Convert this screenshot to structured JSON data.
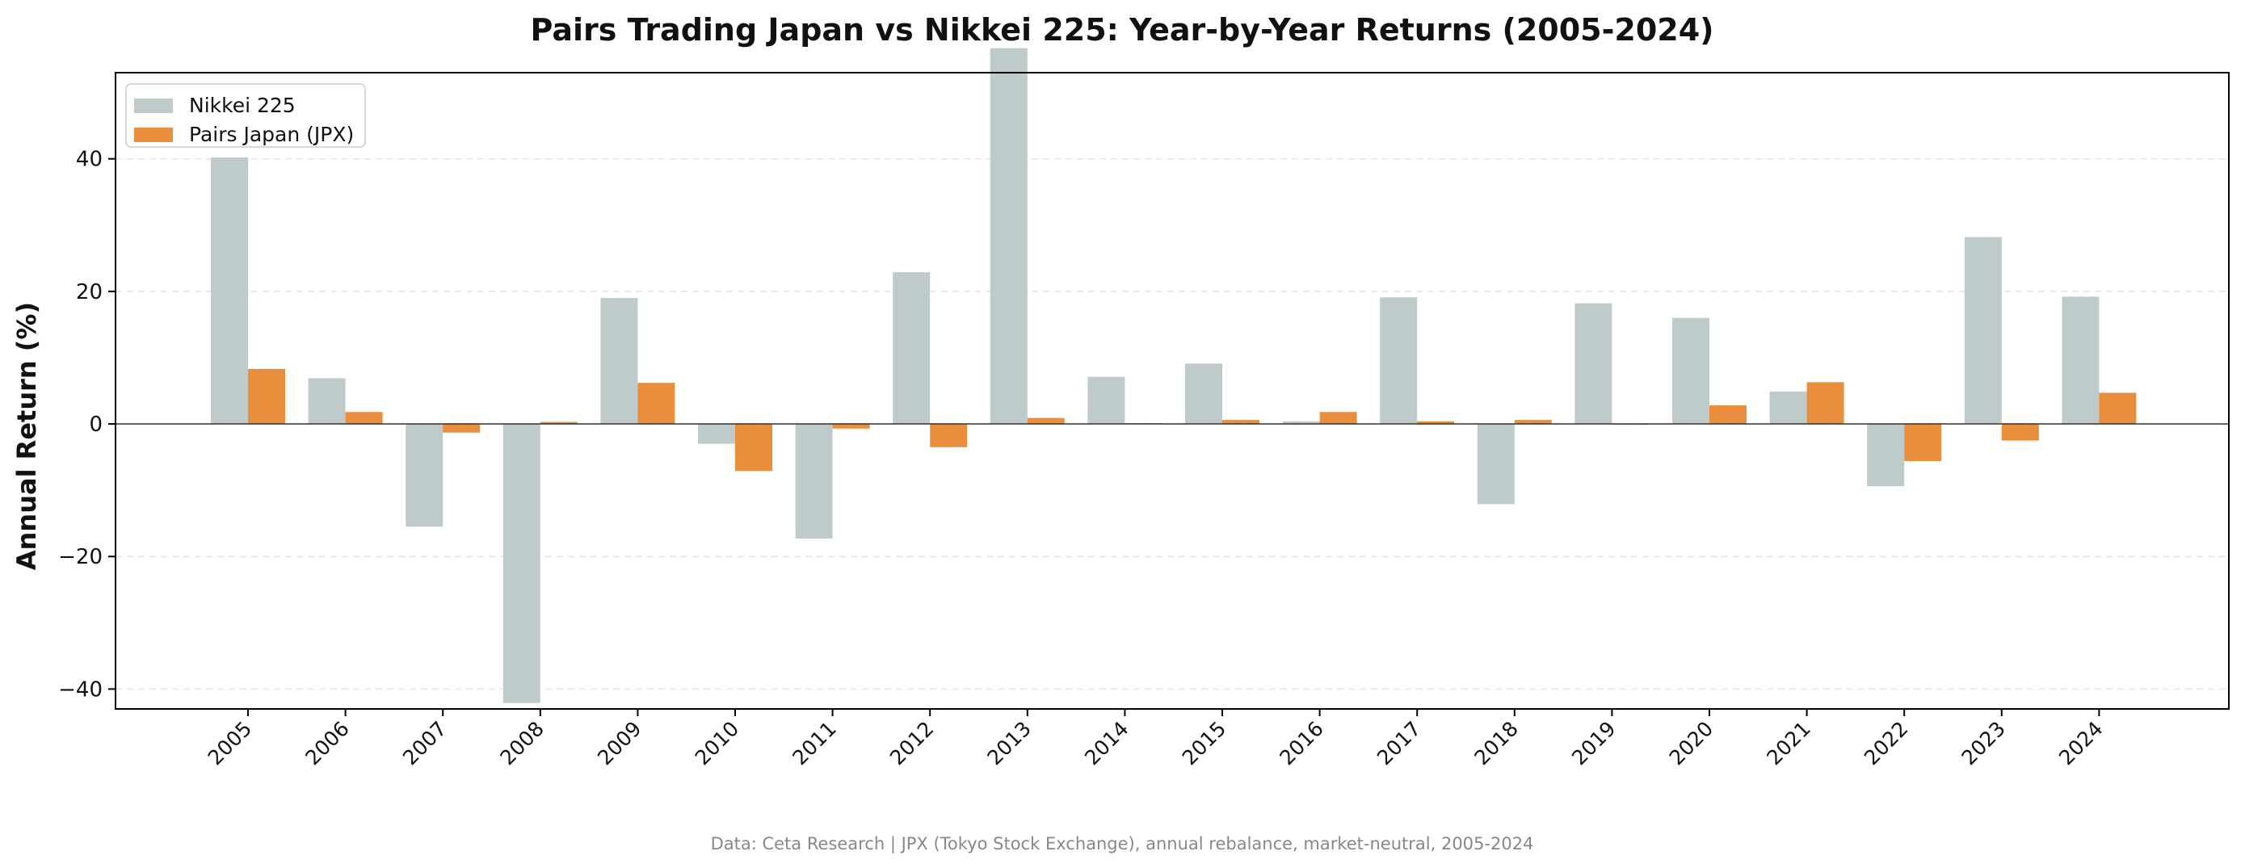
{
  "chart_data": {
    "type": "bar",
    "title": "Pairs Trading Japan vs Nikkei 225: Year-by-Year Returns (2005-2024)",
    "xlabel": "",
    "ylabel": "Annual Return (%)",
    "ylim": [
      -43,
      53
    ],
    "yticks": [
      -40,
      -20,
      0,
      20,
      40
    ],
    "grid": true,
    "legend_position": "top-left",
    "categories": [
      "2005",
      "2006",
      "2007",
      "2008",
      "2009",
      "2010",
      "2011",
      "2012",
      "2013",
      "2014",
      "2015",
      "2016",
      "2017",
      "2018",
      "2019",
      "2020",
      "2021",
      "2022",
      "2023",
      "2024"
    ],
    "series": [
      {
        "name": "Nikkei 225",
        "color": "#bfcaca",
        "values": [
          40.2,
          6.9,
          -15.5,
          -42.1,
          19.0,
          -3.0,
          -17.3,
          22.9,
          56.7,
          7.1,
          9.1,
          0.4,
          19.1,
          -12.1,
          18.2,
          16.0,
          4.9,
          -9.4,
          28.2,
          19.2
        ]
      },
      {
        "name": "Pairs Japan (JPX)",
        "color": "#e88e3c",
        "values": [
          8.3,
          1.8,
          -1.3,
          0.3,
          6.2,
          -7.1,
          -0.7,
          -3.5,
          0.9,
          0.1,
          0.6,
          1.8,
          0.4,
          0.6,
          0.0,
          2.8,
          6.3,
          -5.6,
          -2.5,
          4.7
        ]
      }
    ],
    "source_note": "Data: Ceta Research | JPX (Tokyo Stock Exchange), annual rebalance, market-neutral, 2005-2024"
  }
}
